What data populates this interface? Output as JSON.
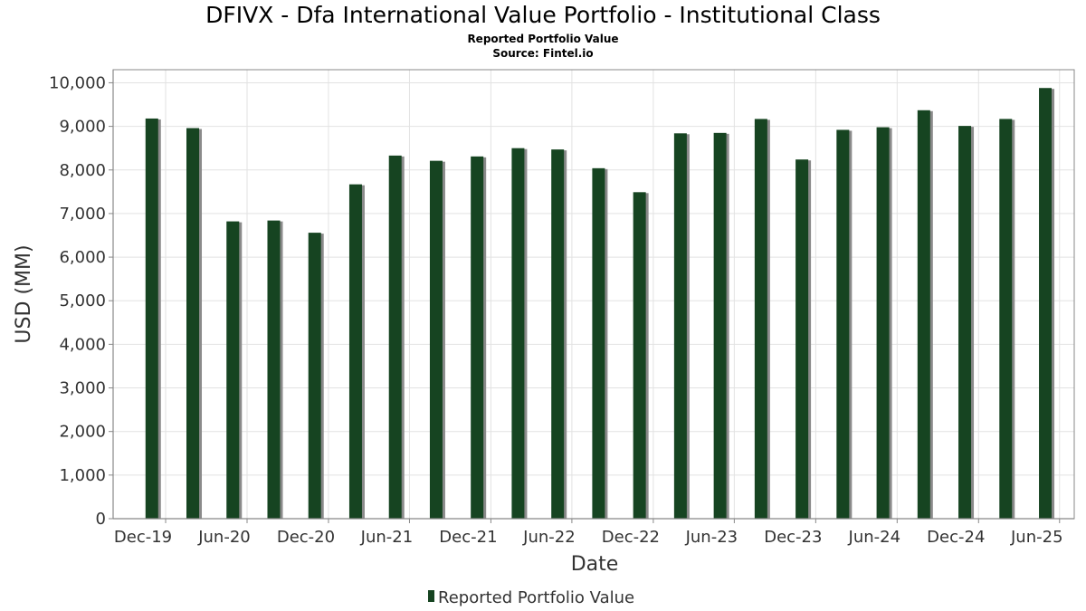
{
  "header": {
    "title": "DFIVX - Dfa International Value Portfolio - Institutional Class",
    "subtitle": "Reported Portfolio Value",
    "source": "Source: Fintel.io"
  },
  "colors": {
    "bar": "#164421",
    "bar_shadow": "#8a8a8a",
    "grid": "#e2e2e2",
    "axis": "#888888"
  },
  "chart_data": {
    "type": "bar",
    "xlabel": "Date",
    "ylabel": "USD (MM)",
    "ylim": [
      0,
      10300
    ],
    "yticks": [
      0,
      1000,
      2000,
      3000,
      4000,
      5000,
      6000,
      7000,
      8000,
      9000,
      10000
    ],
    "ytick_labels": [
      "0",
      "1,000",
      "2,000",
      "3,000",
      "4,000",
      "5,000",
      "6,000",
      "7,000",
      "8,000",
      "9,000",
      "10,000"
    ],
    "xlim": [
      "2019-08-05",
      "2025-07-04"
    ],
    "xticks": [
      {
        "date": "2019-12-01",
        "label": "Dec-19"
      },
      {
        "date": "2020-06-01",
        "label": "Jun-20"
      },
      {
        "date": "2020-12-01",
        "label": "Dec-20"
      },
      {
        "date": "2021-06-01",
        "label": "Jun-21"
      },
      {
        "date": "2021-12-01",
        "label": "Dec-21"
      },
      {
        "date": "2022-06-01",
        "label": "Jun-22"
      },
      {
        "date": "2022-12-01",
        "label": "Dec-22"
      },
      {
        "date": "2023-06-01",
        "label": "Jun-23"
      },
      {
        "date": "2023-12-01",
        "label": "Dec-23"
      },
      {
        "date": "2024-06-01",
        "label": "Jun-24"
      },
      {
        "date": "2024-12-01",
        "label": "Dec-24"
      },
      {
        "date": "2025-06-01",
        "label": "Jun-25"
      }
    ],
    "grid": true,
    "legend_position": "bottom-center",
    "series": [
      {
        "name": "Reported Portfolio Value",
        "points": [
          {
            "x": "2019-10-31",
            "y": 9180
          },
          {
            "x": "2020-01-31",
            "y": 8960
          },
          {
            "x": "2020-04-30",
            "y": 6820
          },
          {
            "x": "2020-07-31",
            "y": 6840
          },
          {
            "x": "2020-10-31",
            "y": 6560
          },
          {
            "x": "2021-01-31",
            "y": 7670
          },
          {
            "x": "2021-04-30",
            "y": 8330
          },
          {
            "x": "2021-07-31",
            "y": 8210
          },
          {
            "x": "2021-10-31",
            "y": 8310
          },
          {
            "x": "2022-01-31",
            "y": 8500
          },
          {
            "x": "2022-04-30",
            "y": 8470
          },
          {
            "x": "2022-07-31",
            "y": 8040
          },
          {
            "x": "2022-10-31",
            "y": 7490
          },
          {
            "x": "2023-01-31",
            "y": 8840
          },
          {
            "x": "2023-04-30",
            "y": 8850
          },
          {
            "x": "2023-07-31",
            "y": 9170
          },
          {
            "x": "2023-10-31",
            "y": 8240
          },
          {
            "x": "2024-01-31",
            "y": 8920
          },
          {
            "x": "2024-04-30",
            "y": 8980
          },
          {
            "x": "2024-07-31",
            "y": 9370
          },
          {
            "x": "2024-10-31",
            "y": 9010
          },
          {
            "x": "2025-01-31",
            "y": 9170
          },
          {
            "x": "2025-04-30",
            "y": 9880
          }
        ]
      }
    ]
  }
}
